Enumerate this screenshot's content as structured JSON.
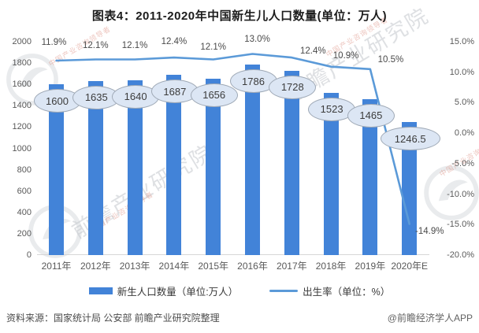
{
  "title": "图表4：2011-2020年中国新生儿人口数量(单位：万人)",
  "chart_data": {
    "type": "bar+line combo",
    "categories": [
      "2011年",
      "2012年",
      "2013年",
      "2014年",
      "2015年",
      "2016年",
      "2017年",
      "2018年",
      "2019年",
      "2020年E"
    ],
    "series": [
      {
        "name": "新生人口数量（单位:万人）",
        "type": "bar",
        "axis": "left",
        "values": [
          1600,
          1635,
          1640,
          1687,
          1656,
          1786,
          1728,
          1523,
          1465,
          1246.5
        ],
        "color": "#4283d8"
      },
      {
        "name": "出生率（单位：%）",
        "type": "line",
        "axis": "right",
        "values": [
          11.9,
          12.1,
          12.1,
          12.4,
          12.1,
          13.0,
          12.4,
          10.9,
          10.5,
          -14.9
        ],
        "color": "#5b9ad8"
      }
    ],
    "bar_labels": [
      "1600",
      "1635",
      "1640",
      "1687",
      "1656",
      "1786",
      "1728",
      "1523",
      "1465",
      "1246.5"
    ],
    "line_labels": [
      "11.9%",
      "12.1%",
      "12.1%",
      "12.4%",
      "12.1%",
      "13.0%",
      "12.4%",
      "10.9%",
      "10.5%",
      "-14.9%"
    ],
    "left_axis": {
      "min": 0,
      "max": 2000,
      "step": 200,
      "ticks": [
        "2000",
        "1800",
        "1600",
        "1400",
        "1200",
        "1000",
        "800",
        "600",
        "400",
        "200",
        "0"
      ]
    },
    "right_axis": {
      "min": -20,
      "max": 15,
      "step": 5,
      "ticks": [
        "15.0%",
        "10.0%",
        "5.0%",
        "0.0%",
        "-5.0%",
        "-10.0%",
        "-15.0%",
        "-20.0%"
      ]
    },
    "grid": "off",
    "legend_position": "bottom"
  },
  "legend": {
    "bar_label": "新生人口数量（单位:万人）",
    "line_label": "出生率（单位：%）"
  },
  "footer": {
    "source": "资料来源：国家统计局 公安部 前瞻产业研究院整理",
    "credit": "@前瞻经济学人APP"
  },
  "watermark": {
    "main": "前瞻产业研究院",
    "sub": "中国产业咨询领导者"
  },
  "colors": {
    "bar": "#4283d8",
    "line": "#5b9ad8",
    "bubble_fill": "#dce6f4",
    "bubble_border": "#9fa9b6",
    "axis_text": "#595959",
    "baseline": "#d6d6d6"
  }
}
